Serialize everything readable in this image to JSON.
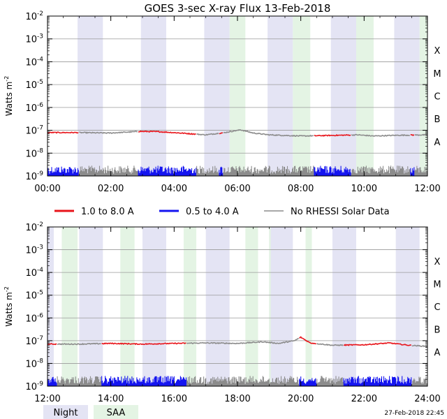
{
  "chart_data": {
    "type": "line",
    "title": "GOES 3-sec X-ray Flux   13-Feb-2018",
    "ylabel": "Watts m",
    "ylabel_sup": "-2",
    "yscale": "log",
    "ylim": [
      1e-09,
      0.01
    ],
    "y_ticks": [
      {
        "base": "10",
        "exp": "-2",
        "value": -2
      },
      {
        "base": "10",
        "exp": "-3",
        "value": -3
      },
      {
        "base": "10",
        "exp": "-4",
        "value": -4
      },
      {
        "base": "10",
        "exp": "-5",
        "value": -5
      },
      {
        "base": "10",
        "exp": "-6",
        "value": -6
      },
      {
        "base": "10",
        "exp": "-7",
        "value": -7
      },
      {
        "base": "10",
        "exp": "-8",
        "value": -8
      },
      {
        "base": "10",
        "exp": "-9",
        "value": -9
      }
    ],
    "flare_classes": [
      {
        "label": "X",
        "log_flux": -4
      },
      {
        "label": "M",
        "log_flux": -5
      },
      {
        "label": "C",
        "log_flux": -6
      },
      {
        "label": "B",
        "log_flux": -7
      },
      {
        "label": "A",
        "log_flux": -8
      }
    ],
    "legend": {
      "placement": "between-panels",
      "entries": [
        {
          "label": "1.0 to 8.0 A",
          "color": "#e8141a"
        },
        {
          "label": "0.5 to 4.0 A",
          "color": "#1414f0"
        },
        {
          "label": "No RHESSI Solar Data",
          "color": "#8c8c8c"
        }
      ]
    },
    "bottom_legend": [
      {
        "label": "Night",
        "color": "#e4e4f4"
      },
      {
        "label": "SAA",
        "color": "#e4f4e4"
      }
    ],
    "timestamp": "27-Feb-2018 22:45",
    "panels": [
      {
        "xlim": [
          0,
          12
        ],
        "x_ticks": [
          "00:00",
          "02:00",
          "04:00",
          "06:00",
          "08:00",
          "10:00",
          "12:00"
        ],
        "night": [
          [
            0.95,
            1.75
          ],
          [
            2.95,
            3.75
          ],
          [
            4.95,
            5.75
          ],
          [
            6.95,
            7.75
          ],
          [
            8.95,
            9.75
          ],
          [
            10.95,
            11.75
          ]
        ],
        "saa": [
          [
            5.75,
            6.25
          ],
          [
            7.75,
            8.3
          ],
          [
            9.75,
            10.3
          ],
          [
            11.75,
            12.3
          ],
          [
            6.1,
            6.2
          ]
        ],
        "long_channel": [
          [
            0,
            -7.1
          ],
          [
            1,
            -7.1
          ],
          [
            2,
            -7.12
          ],
          [
            2.9,
            -7.05
          ],
          [
            3.5,
            -7.06
          ],
          [
            4.2,
            -7.12
          ],
          [
            5,
            -7.2
          ],
          [
            5.6,
            -7.1
          ],
          [
            6.1,
            -6.98
          ],
          [
            6.5,
            -7.12
          ],
          [
            7,
            -7.2
          ],
          [
            8,
            -7.25
          ],
          [
            8.8,
            -7.23
          ],
          [
            9.8,
            -7.2
          ],
          [
            10.3,
            -7.25
          ],
          [
            11,
            -7.22
          ],
          [
            12,
            -7.2
          ]
        ],
        "short_channel": [
          [
            0,
            -8.85
          ],
          [
            12,
            -8.85
          ]
        ],
        "rhessi_segments": [
          [
            1.0,
            2.85
          ],
          [
            4.7,
            5.4
          ],
          [
            5.55,
            8.4
          ],
          [
            9.6,
            11.45
          ],
          [
            11.6,
            12
          ]
        ]
      },
      {
        "xlim": [
          12,
          24
        ],
        "x_ticks": [
          "12:00",
          "14:00",
          "16:00",
          "18:00",
          "20:00",
          "22:00",
          "24:00"
        ],
        "night": [
          [
            12.0,
            12.2
          ],
          [
            13.0,
            13.75
          ],
          [
            15.0,
            15.75
          ],
          [
            17.0,
            17.75
          ],
          [
            19.0,
            19.75
          ],
          [
            21.0,
            21.75
          ],
          [
            23.0,
            23.75
          ]
        ],
        "saa": [
          [
            12.45,
            12.95
          ],
          [
            14.3,
            14.75
          ],
          [
            16.3,
            16.7
          ],
          [
            18.25,
            18.65
          ],
          [
            20.15,
            20.35
          ],
          [
            19.0,
            19.05
          ]
        ],
        "long_channel": [
          [
            12,
            -7.15
          ],
          [
            13,
            -7.15
          ],
          [
            14,
            -7.12
          ],
          [
            15,
            -7.15
          ],
          [
            16,
            -7.12
          ],
          [
            17,
            -7.1
          ],
          [
            18,
            -7.12
          ],
          [
            18.8,
            -7.05
          ],
          [
            19.3,
            -7.12
          ],
          [
            19.8,
            -7.0
          ],
          [
            20.0,
            -6.85
          ],
          [
            20.3,
            -7.1
          ],
          [
            21,
            -7.2
          ],
          [
            22,
            -7.18
          ],
          [
            22.8,
            -7.1
          ],
          [
            23.4,
            -7.2
          ],
          [
            24,
            -7.25
          ]
        ],
        "short_channel": [
          [
            12,
            -8.85
          ],
          [
            24,
            -8.85
          ]
        ],
        "rhessi_segments": [
          [
            12.3,
            13.7
          ],
          [
            16.4,
            19.95
          ],
          [
            20.5,
            21.35
          ],
          [
            23.5,
            24
          ]
        ]
      }
    ]
  }
}
